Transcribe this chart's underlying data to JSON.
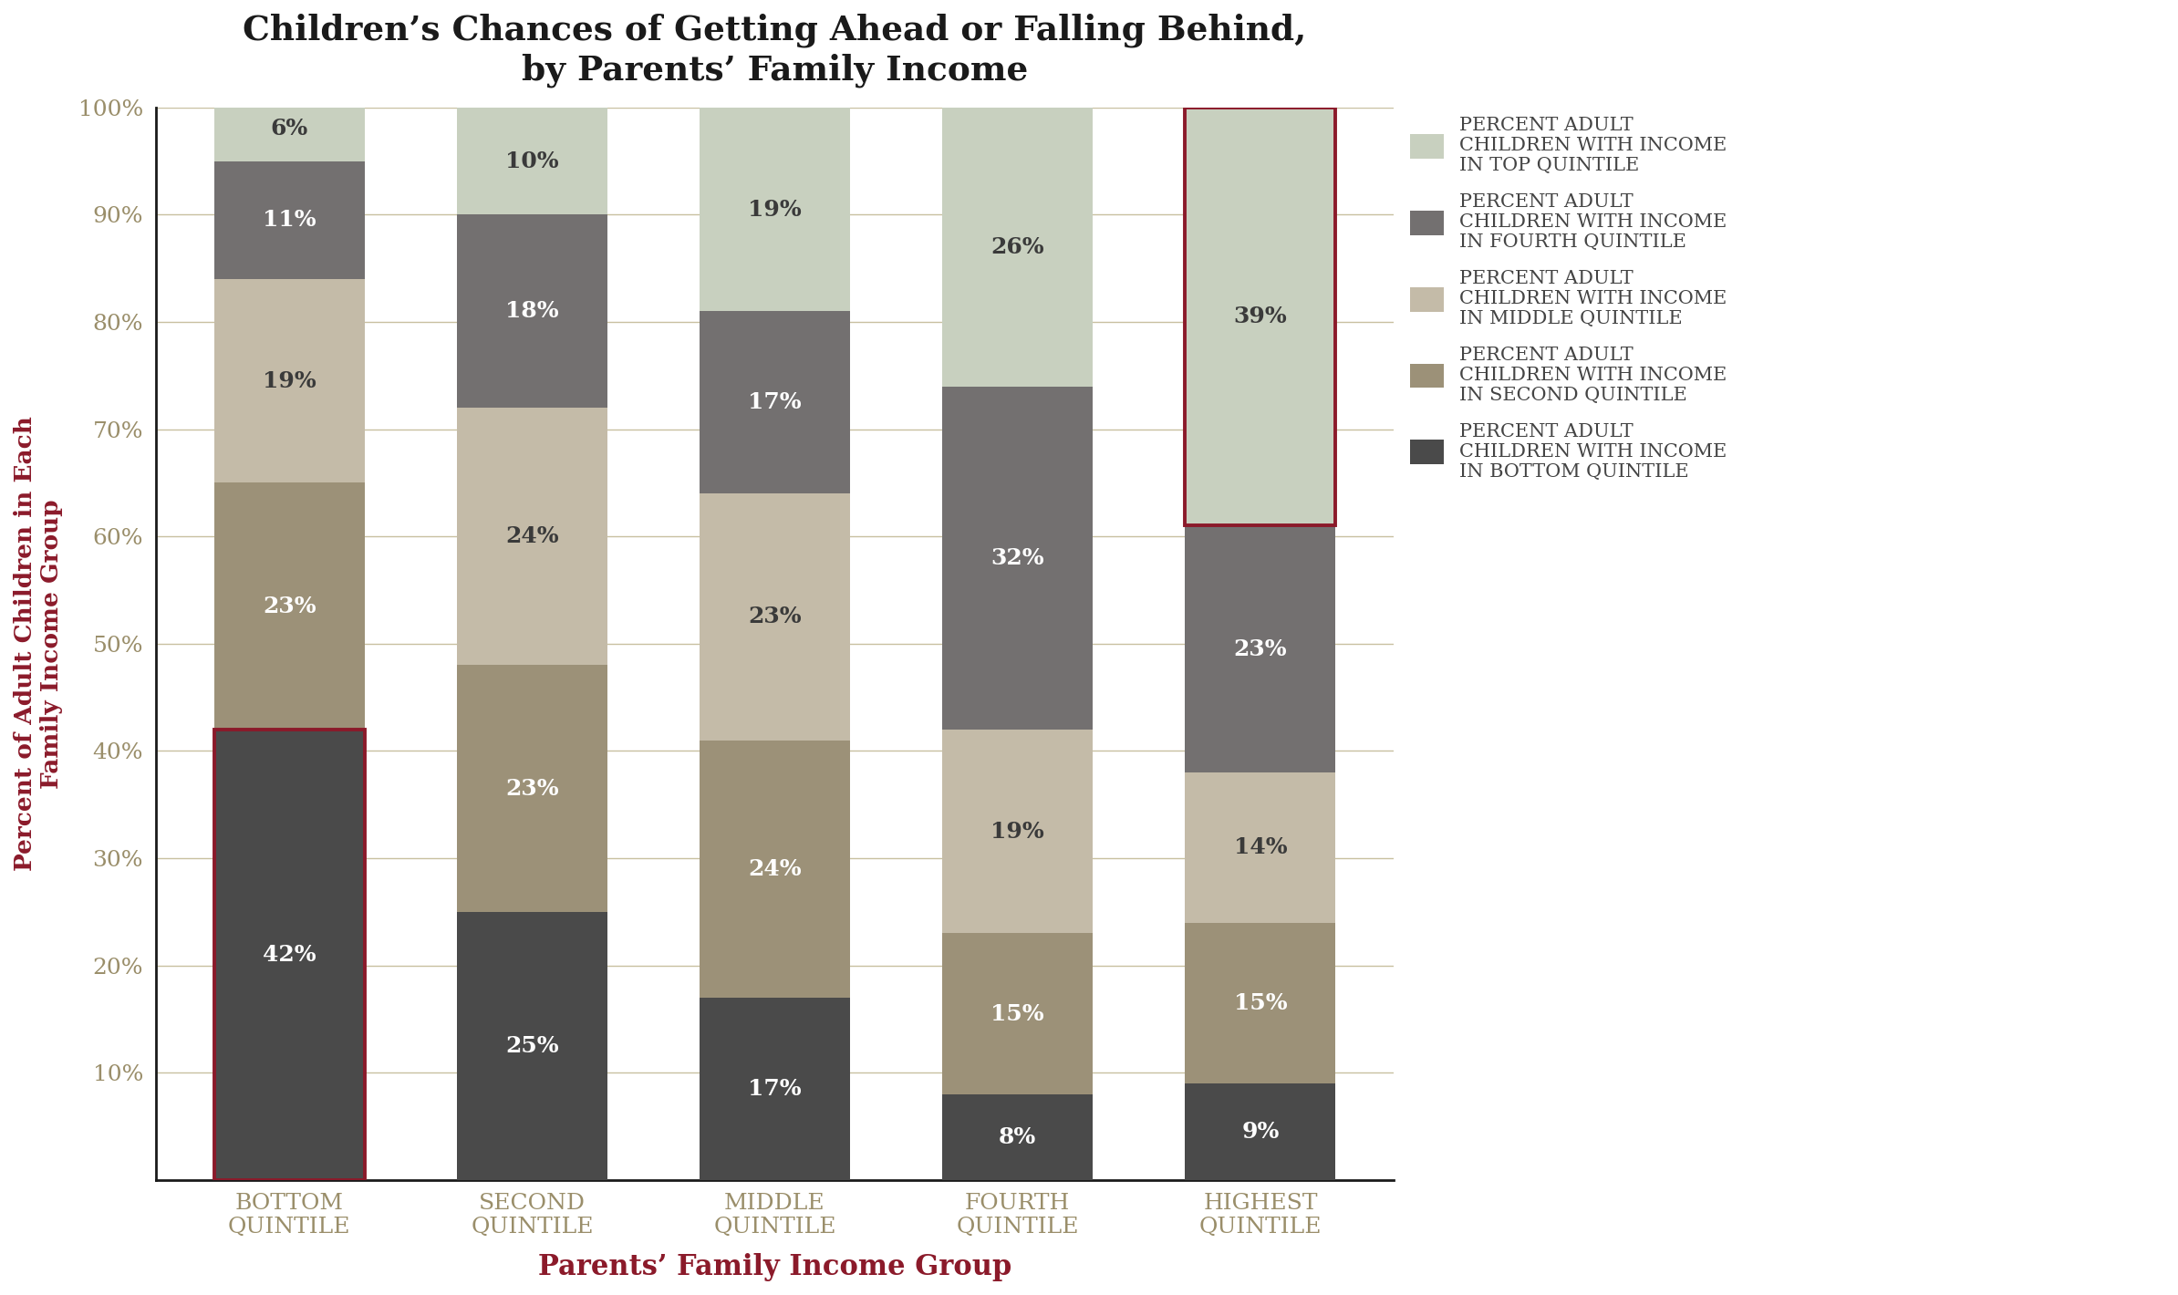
{
  "title": "Children’s Chances of Getting Ahead or Falling Behind,\nby Parents’ Family Income",
  "xlabel": "Parents’ Family Income Group",
  "ylabel": "Percent of Adult Children in Each\nFamily Income Group",
  "categories_line1": [
    "Bottom",
    "Second",
    "Middle",
    "Fourth",
    "Highest"
  ],
  "categories_line2": [
    "Quintile",
    "Quintile",
    "Quintile",
    "Quintile",
    "Quintile"
  ],
  "series": {
    "bottom": [
      42,
      25,
      17,
      8,
      9
    ],
    "second": [
      23,
      23,
      24,
      15,
      15
    ],
    "middle": [
      19,
      24,
      23,
      19,
      14
    ],
    "fourth": [
      11,
      18,
      17,
      32,
      23
    ],
    "top": [
      6,
      10,
      19,
      26,
      39
    ]
  },
  "colors": {
    "bottom": "#4a4a4a",
    "second": "#9c9178",
    "middle": "#c4bba8",
    "fourth": "#737070",
    "top": "#c8d0bf"
  },
  "label_colors": {
    "bottom": "#ffffff",
    "second": "#ffffff",
    "middle": "#3a3a3a",
    "fourth": "#ffffff",
    "top": "#3a3a3a"
  },
  "legend_labels": [
    "Percent adult\nchildren with income\nin top quintile",
    "Percent adult\nchildren with income\nin fourth quintile",
    "Percent adult\nchildren with income\nin middle quintile",
    "Percent adult\nchildren with income\nin second quintile",
    "Percent adult\nchildren with income\nin bottom quintile"
  ],
  "highlight_color": "#8b1a2a",
  "background_color": "#ffffff",
  "grid_color": "#c8c0a0",
  "tick_color": "#9a8e6a",
  "title_color": "#1a1a1a",
  "ylabel_color": "#8b1a2a",
  "xlabel_color": "#8b1a2a",
  "spine_color": "#1a1a1a",
  "bar_width": 0.62,
  "ylim": [
    0,
    100
  ],
  "yticks": [
    10,
    20,
    30,
    40,
    50,
    60,
    70,
    80,
    90,
    100
  ]
}
